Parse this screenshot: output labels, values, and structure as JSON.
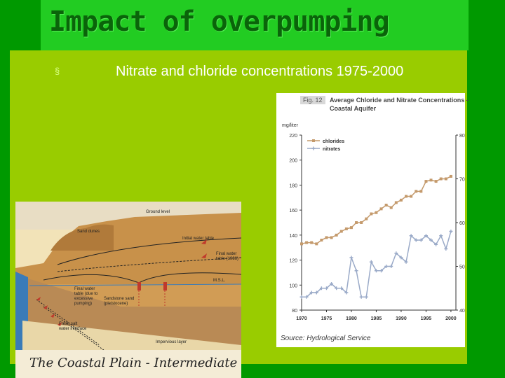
{
  "slide": {
    "title": "Impact of overpumping",
    "bullet_marker": "§",
    "bullet_text": "Nitrate and chloride concentrations 1975-2000"
  },
  "left_figure": {
    "caption": "The Coastal Plain - Intermediate Stage",
    "labels": {
      "ground_level": "Ground level",
      "sand_dunes": "Sand dunes",
      "initial_water_table": "Initial water table",
      "final_water_table_1": "Final water",
      "final_water_table_2": "table (1986)",
      "msl": "M.S.L.",
      "final_table_excess_1": "Final water",
      "final_table_excess_2": "table (due to",
      "final_table_excess_3": "excessive",
      "final_table_excess_4": "pumping)",
      "sandstone_1": "Sandstone sand",
      "sandstone_2": "(pleistocene)",
      "interface_1": "Fresh salt",
      "interface_2": "water interface",
      "impervious": "Impervious layer"
    }
  },
  "chart_data": {
    "type": "line",
    "fig_tag": "Fig. 12",
    "title": "Average Chloride and Nitrate Concentrations - Coastal Aquifer",
    "ylabel": "mg/liter",
    "source": "Source: Hydrological Service",
    "x_ticks": [
      "1970",
      "1975",
      "1980",
      "1985",
      "1990",
      "1995",
      "2000"
    ],
    "xlim": [
      1970,
      2001
    ],
    "left_axis": {
      "ticks": [
        "80",
        "100",
        "120",
        "140",
        "160",
        "180",
        "200",
        "220"
      ],
      "ylim": [
        80,
        220
      ]
    },
    "right_axis": {
      "ticks": [
        "40",
        "50",
        "60",
        "70",
        "80"
      ],
      "ylim": [
        40,
        80
      ]
    },
    "series": [
      {
        "name": "chlorides",
        "axis": "left",
        "color": "#c49a6c",
        "x": [
          1970,
          1971,
          1972,
          1973,
          1974,
          1975,
          1976,
          1977,
          1978,
          1979,
          1980,
          1981,
          1982,
          1983,
          1984,
          1985,
          1986,
          1987,
          1988,
          1989,
          1990,
          1991,
          1992,
          1993,
          1994,
          1995,
          1996,
          1997,
          1998,
          1999,
          2000
        ],
        "y": [
          133,
          134,
          134,
          133,
          136,
          138,
          138,
          140,
          143,
          145,
          146,
          150,
          150,
          153,
          157,
          158,
          161,
          164,
          162,
          166,
          168,
          171,
          171,
          175,
          175,
          183,
          184,
          183,
          185,
          185,
          187
        ]
      },
      {
        "name": "nitrates",
        "axis": "right",
        "color": "#9aaac8",
        "x": [
          1970,
          1971,
          1972,
          1973,
          1974,
          1975,
          1976,
          1977,
          1978,
          1979,
          1980,
          1981,
          1982,
          1983,
          1984,
          1985,
          1986,
          1987,
          1988,
          1989,
          1990,
          1991,
          1992,
          1993,
          1994,
          1995,
          1996,
          1997,
          1998,
          1999,
          2000
        ],
        "y": [
          43,
          43,
          44,
          44,
          45,
          45,
          46,
          45,
          45,
          44,
          52,
          49,
          43,
          43,
          51,
          49,
          49,
          50,
          50,
          53,
          52,
          51,
          57,
          56,
          56,
          57,
          56,
          55,
          57,
          54,
          58
        ]
      }
    ]
  },
  "colors": {
    "slide_bg": "#009900",
    "title_bg": "#22cc22",
    "content_bg": "#99cc00",
    "title_text": "#0a640a"
  }
}
